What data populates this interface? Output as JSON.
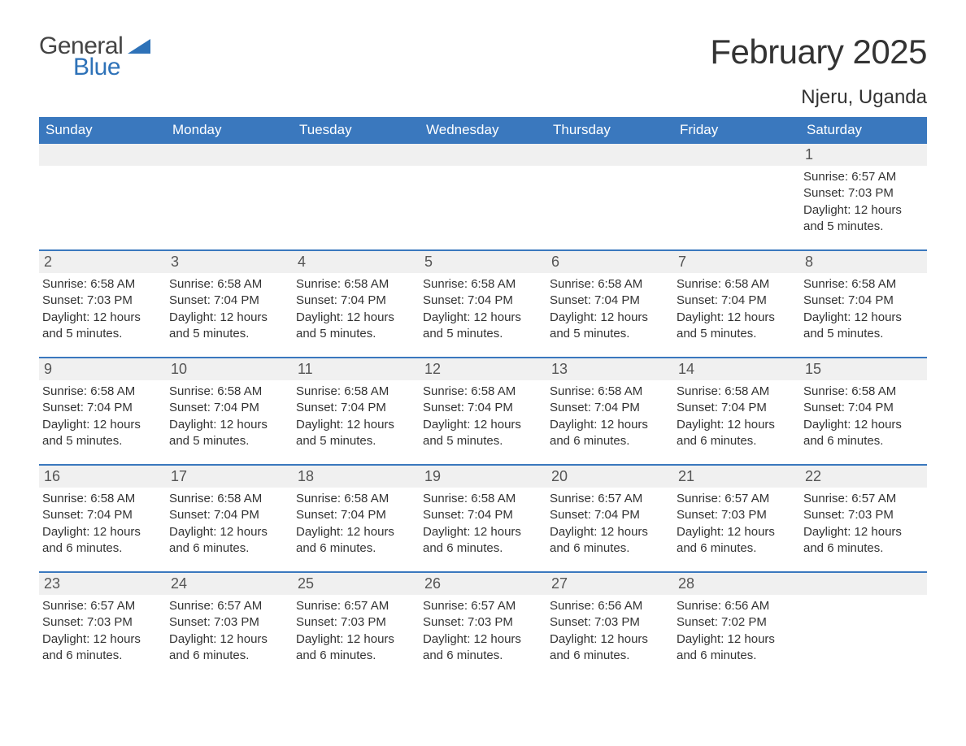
{
  "logo": {
    "text1": "General",
    "text2": "Blue",
    "mark_color": "#2e72b8",
    "text1_color": "#444444"
  },
  "title": "February 2025",
  "location": "Njeru, Uganda",
  "colors": {
    "header_bg": "#3a78be",
    "header_text": "#ffffff",
    "row_divider": "#3a78be",
    "daynum_bg": "#f0f0f0",
    "daynum_text": "#555555",
    "body_text": "#333333",
    "page_bg": "#ffffff"
  },
  "weekdays": [
    "Sunday",
    "Monday",
    "Tuesday",
    "Wednesday",
    "Thursday",
    "Friday",
    "Saturday"
  ],
  "weeks": [
    {
      "days": [
        null,
        null,
        null,
        null,
        null,
        null,
        {
          "n": "1",
          "sunrise": "Sunrise: 6:57 AM",
          "sunset": "Sunset: 7:03 PM",
          "dl1": "Daylight: 12 hours",
          "dl2": "and 5 minutes."
        }
      ]
    },
    {
      "days": [
        {
          "n": "2",
          "sunrise": "Sunrise: 6:58 AM",
          "sunset": "Sunset: 7:03 PM",
          "dl1": "Daylight: 12 hours",
          "dl2": "and 5 minutes."
        },
        {
          "n": "3",
          "sunrise": "Sunrise: 6:58 AM",
          "sunset": "Sunset: 7:04 PM",
          "dl1": "Daylight: 12 hours",
          "dl2": "and 5 minutes."
        },
        {
          "n": "4",
          "sunrise": "Sunrise: 6:58 AM",
          "sunset": "Sunset: 7:04 PM",
          "dl1": "Daylight: 12 hours",
          "dl2": "and 5 minutes."
        },
        {
          "n": "5",
          "sunrise": "Sunrise: 6:58 AM",
          "sunset": "Sunset: 7:04 PM",
          "dl1": "Daylight: 12 hours",
          "dl2": "and 5 minutes."
        },
        {
          "n": "6",
          "sunrise": "Sunrise: 6:58 AM",
          "sunset": "Sunset: 7:04 PM",
          "dl1": "Daylight: 12 hours",
          "dl2": "and 5 minutes."
        },
        {
          "n": "7",
          "sunrise": "Sunrise: 6:58 AM",
          "sunset": "Sunset: 7:04 PM",
          "dl1": "Daylight: 12 hours",
          "dl2": "and 5 minutes."
        },
        {
          "n": "8",
          "sunrise": "Sunrise: 6:58 AM",
          "sunset": "Sunset: 7:04 PM",
          "dl1": "Daylight: 12 hours",
          "dl2": "and 5 minutes."
        }
      ]
    },
    {
      "days": [
        {
          "n": "9",
          "sunrise": "Sunrise: 6:58 AM",
          "sunset": "Sunset: 7:04 PM",
          "dl1": "Daylight: 12 hours",
          "dl2": "and 5 minutes."
        },
        {
          "n": "10",
          "sunrise": "Sunrise: 6:58 AM",
          "sunset": "Sunset: 7:04 PM",
          "dl1": "Daylight: 12 hours",
          "dl2": "and 5 minutes."
        },
        {
          "n": "11",
          "sunrise": "Sunrise: 6:58 AM",
          "sunset": "Sunset: 7:04 PM",
          "dl1": "Daylight: 12 hours",
          "dl2": "and 5 minutes."
        },
        {
          "n": "12",
          "sunrise": "Sunrise: 6:58 AM",
          "sunset": "Sunset: 7:04 PM",
          "dl1": "Daylight: 12 hours",
          "dl2": "and 5 minutes."
        },
        {
          "n": "13",
          "sunrise": "Sunrise: 6:58 AM",
          "sunset": "Sunset: 7:04 PM",
          "dl1": "Daylight: 12 hours",
          "dl2": "and 6 minutes."
        },
        {
          "n": "14",
          "sunrise": "Sunrise: 6:58 AM",
          "sunset": "Sunset: 7:04 PM",
          "dl1": "Daylight: 12 hours",
          "dl2": "and 6 minutes."
        },
        {
          "n": "15",
          "sunrise": "Sunrise: 6:58 AM",
          "sunset": "Sunset: 7:04 PM",
          "dl1": "Daylight: 12 hours",
          "dl2": "and 6 minutes."
        }
      ]
    },
    {
      "days": [
        {
          "n": "16",
          "sunrise": "Sunrise: 6:58 AM",
          "sunset": "Sunset: 7:04 PM",
          "dl1": "Daylight: 12 hours",
          "dl2": "and 6 minutes."
        },
        {
          "n": "17",
          "sunrise": "Sunrise: 6:58 AM",
          "sunset": "Sunset: 7:04 PM",
          "dl1": "Daylight: 12 hours",
          "dl2": "and 6 minutes."
        },
        {
          "n": "18",
          "sunrise": "Sunrise: 6:58 AM",
          "sunset": "Sunset: 7:04 PM",
          "dl1": "Daylight: 12 hours",
          "dl2": "and 6 minutes."
        },
        {
          "n": "19",
          "sunrise": "Sunrise: 6:58 AM",
          "sunset": "Sunset: 7:04 PM",
          "dl1": "Daylight: 12 hours",
          "dl2": "and 6 minutes."
        },
        {
          "n": "20",
          "sunrise": "Sunrise: 6:57 AM",
          "sunset": "Sunset: 7:04 PM",
          "dl1": "Daylight: 12 hours",
          "dl2": "and 6 minutes."
        },
        {
          "n": "21",
          "sunrise": "Sunrise: 6:57 AM",
          "sunset": "Sunset: 7:03 PM",
          "dl1": "Daylight: 12 hours",
          "dl2": "and 6 minutes."
        },
        {
          "n": "22",
          "sunrise": "Sunrise: 6:57 AM",
          "sunset": "Sunset: 7:03 PM",
          "dl1": "Daylight: 12 hours",
          "dl2": "and 6 minutes."
        }
      ]
    },
    {
      "days": [
        {
          "n": "23",
          "sunrise": "Sunrise: 6:57 AM",
          "sunset": "Sunset: 7:03 PM",
          "dl1": "Daylight: 12 hours",
          "dl2": "and 6 minutes."
        },
        {
          "n": "24",
          "sunrise": "Sunrise: 6:57 AM",
          "sunset": "Sunset: 7:03 PM",
          "dl1": "Daylight: 12 hours",
          "dl2": "and 6 minutes."
        },
        {
          "n": "25",
          "sunrise": "Sunrise: 6:57 AM",
          "sunset": "Sunset: 7:03 PM",
          "dl1": "Daylight: 12 hours",
          "dl2": "and 6 minutes."
        },
        {
          "n": "26",
          "sunrise": "Sunrise: 6:57 AM",
          "sunset": "Sunset: 7:03 PM",
          "dl1": "Daylight: 12 hours",
          "dl2": "and 6 minutes."
        },
        {
          "n": "27",
          "sunrise": "Sunrise: 6:56 AM",
          "sunset": "Sunset: 7:03 PM",
          "dl1": "Daylight: 12 hours",
          "dl2": "and 6 minutes."
        },
        {
          "n": "28",
          "sunrise": "Sunrise: 6:56 AM",
          "sunset": "Sunset: 7:02 PM",
          "dl1": "Daylight: 12 hours",
          "dl2": "and 6 minutes."
        },
        null
      ]
    }
  ]
}
